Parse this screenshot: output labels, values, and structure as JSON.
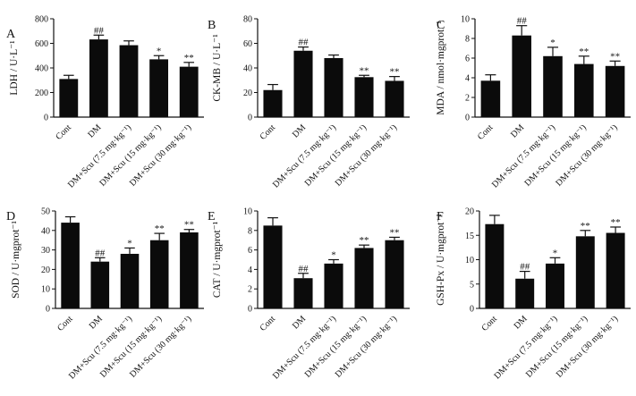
{
  "figure": {
    "background": "#ffffff",
    "bar_color": "#0b0b0b"
  },
  "chart_data": [
    {
      "type": "bar",
      "panel": "A",
      "ylabel": "LDH / U·L⁻¹",
      "categories": [
        "Cont",
        "DM",
        "DM+Scu (7.5 mg·kg⁻¹)",
        "DM+Scu (15 mg·kg⁻¹)",
        "DM+Scu (30 mg·kg⁻¹)"
      ],
      "values": [
        310,
        632,
        585,
        470,
        410
      ],
      "errors": [
        30,
        35,
        35,
        30,
        35
      ],
      "significance": [
        "",
        "##",
        "",
        "*",
        "**"
      ],
      "ylim": [
        0,
        800
      ],
      "yticks": [
        0,
        200,
        400,
        600,
        800
      ]
    },
    {
      "type": "bar",
      "panel": "B",
      "ylabel": "CK-MB / U·L⁻¹",
      "categories": [
        "Cont",
        "DM",
        "DM+Scu (7.5 mg·kg⁻¹)",
        "DM+Scu (15 mg·kg⁻¹)",
        "DM+Scu (30 mg·kg⁻¹)"
      ],
      "values": [
        22,
        54,
        48,
        32.5,
        29.5
      ],
      "errors": [
        4.5,
        3,
        2.5,
        1.5,
        3.5
      ],
      "significance": [
        "",
        "##",
        "",
        "**",
        "**"
      ],
      "ylim": [
        0,
        80
      ],
      "yticks": [
        0,
        20,
        40,
        60,
        80
      ]
    },
    {
      "type": "bar",
      "panel": "C",
      "ylabel": "MDA / nmol·mgprot⁻¹",
      "categories": [
        "Cont",
        "DM",
        "DM+Scu (7.5 mg·kg⁻¹)",
        "DM+Scu (15 mg·kg⁻¹)",
        "DM+Scu (30 mg·kg⁻¹)"
      ],
      "values": [
        3.7,
        8.3,
        6.2,
        5.4,
        5.2
      ],
      "errors": [
        0.6,
        1.0,
        0.9,
        0.8,
        0.5
      ],
      "significance": [
        "",
        "##",
        "*",
        "**",
        "**"
      ],
      "ylim": [
        0,
        10
      ],
      "yticks": [
        0,
        2,
        4,
        6,
        8,
        10
      ]
    },
    {
      "type": "bar",
      "panel": "D",
      "ylabel": "SOD / U·mgprot⁻¹",
      "categories": [
        "Cont",
        "DM",
        "DM+Scu (7.5 mg·kg⁻¹)",
        "DM+Scu (15 mg·kg⁻¹)",
        "DM+Scu (30 mg·kg⁻¹)"
      ],
      "values": [
        44,
        24,
        28,
        35,
        39
      ],
      "errors": [
        3,
        2,
        3,
        3.5,
        1.5
      ],
      "significance": [
        "",
        "##",
        "*",
        "**",
        "**"
      ],
      "ylim": [
        0,
        50
      ],
      "yticks": [
        0,
        10,
        20,
        30,
        40,
        50
      ]
    },
    {
      "type": "bar",
      "panel": "E",
      "ylabel": "CAT / U·mgprot⁻¹",
      "categories": [
        "Cont",
        "DM",
        "DM+Scu (7.5 mg·kg⁻¹)",
        "DM+Scu (15 mg·kg⁻¹)",
        "DM+Scu (30 mg·kg⁻¹)"
      ],
      "values": [
        8.5,
        3.1,
        4.6,
        6.2,
        7.0
      ],
      "errors": [
        0.8,
        0.5,
        0.4,
        0.3,
        0.3
      ],
      "significance": [
        "",
        "##",
        "*",
        "**",
        "**"
      ],
      "ylim": [
        0,
        10
      ],
      "yticks": [
        0,
        2,
        4,
        6,
        8,
        10
      ]
    },
    {
      "type": "bar",
      "panel": "F",
      "ylabel": "GSH-Px / U·mgprot⁻¹",
      "categories": [
        "Cont",
        "DM",
        "DM+Scu (7.5 mg·kg⁻¹)",
        "DM+Scu (15 mg·kg⁻¹)",
        "DM+Scu (30 mg·kg⁻¹)"
      ],
      "values": [
        17.3,
        6.1,
        9.2,
        14.8,
        15.5
      ],
      "errors": [
        1.8,
        1.5,
        1.2,
        1.2,
        1.2
      ],
      "significance": [
        "",
        "##",
        "*",
        "**",
        "**"
      ],
      "ylim": [
        0,
        20
      ],
      "yticks": [
        0,
        5,
        10,
        15,
        20
      ]
    }
  ]
}
